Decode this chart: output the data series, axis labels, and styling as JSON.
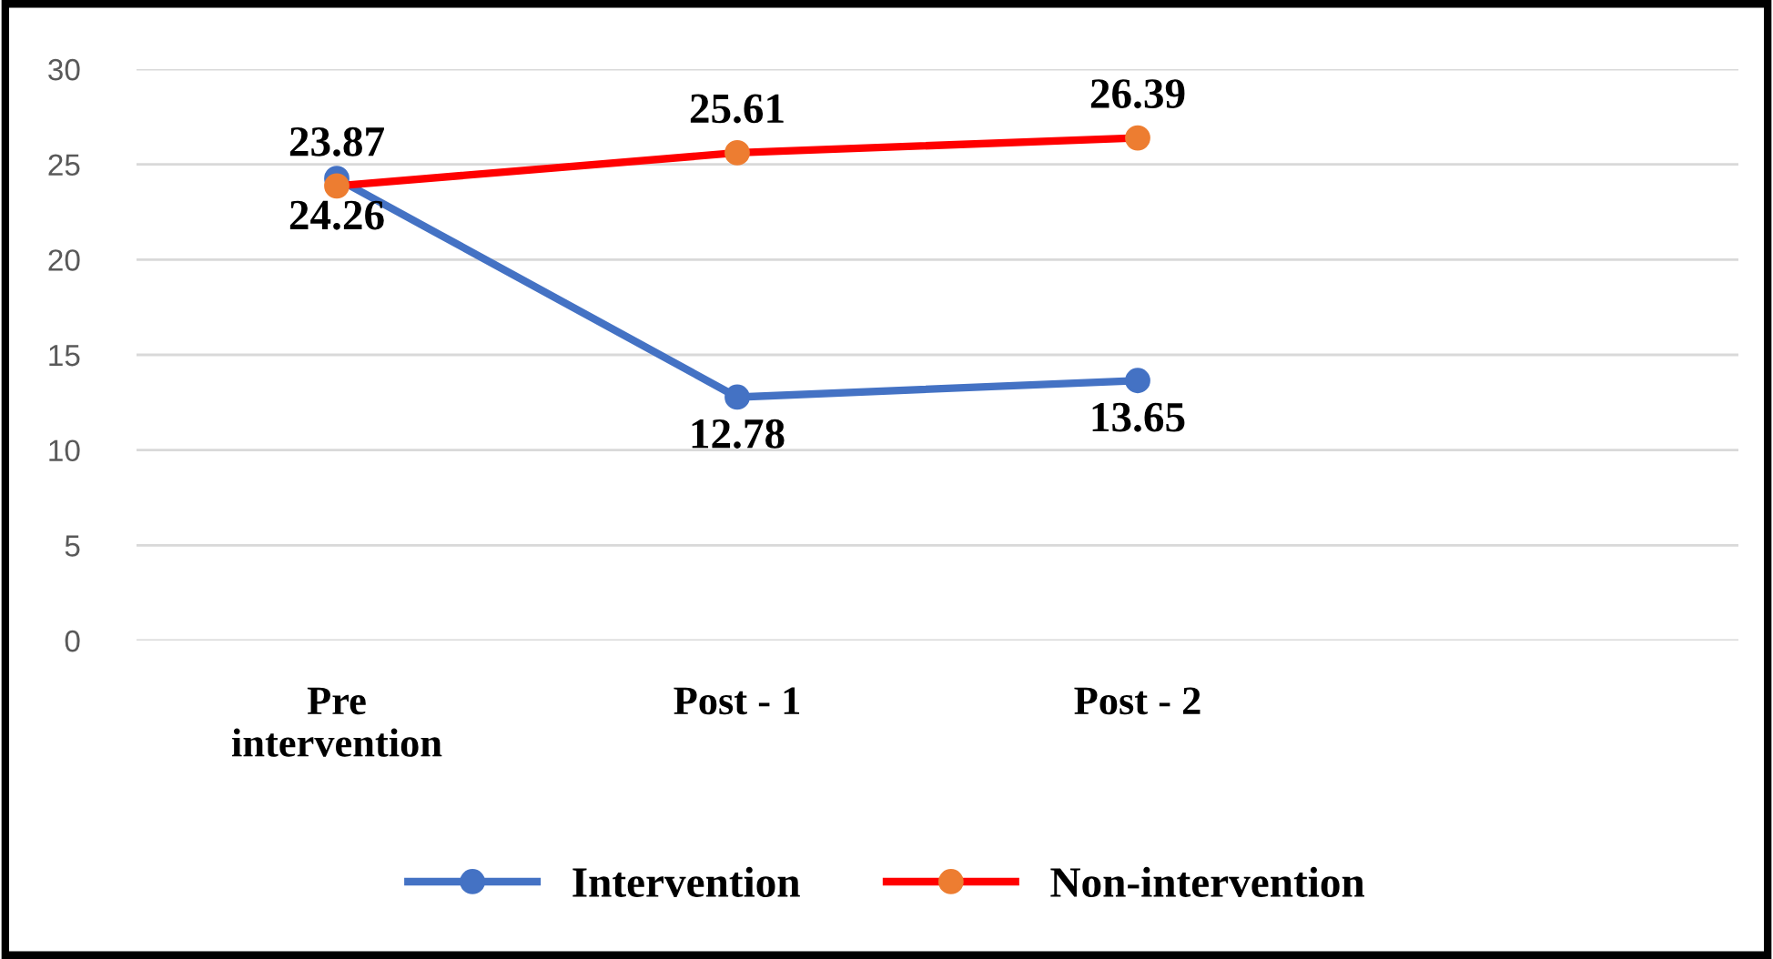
{
  "chart_data": {
    "type": "line",
    "categories": [
      "Pre\nintervention",
      "Post - 1",
      "Post - 2",
      null
    ],
    "series": [
      {
        "name": "Intervention",
        "color": "#4472c4",
        "values": [
          24.26,
          12.78,
          13.65,
          null
        ]
      },
      {
        "name": "Non-intervention",
        "color": "#ff0000",
        "colors": [
          "#ed7d31",
          "#ed7d31",
          "#ed7d31",
          "#ed7d31"
        ],
        "values": [
          23.87,
          25.61,
          26.39,
          null
        ]
      }
    ],
    "ylim": [
      0,
      30
    ],
    "yticks": [
      0,
      5,
      10,
      15,
      20,
      25,
      30
    ],
    "grid": "y",
    "legend": "bottom",
    "marker": "circle",
    "line_style": "solid",
    "data_labels": true
  }
}
